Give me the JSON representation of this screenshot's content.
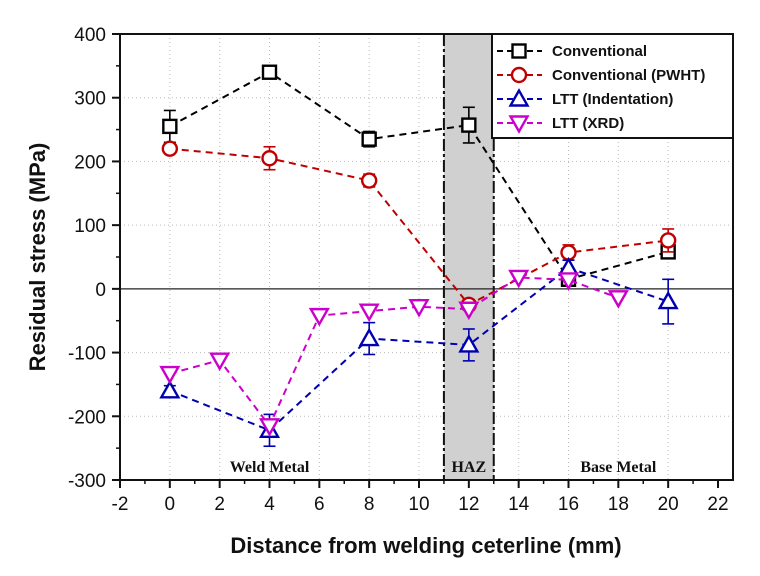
{
  "chart_data": {
    "type": "line",
    "title": "",
    "xlabel": "Distance from welding ceterline (mm)",
    "ylabel": "Residual stress (MPa)",
    "xlim": [
      -2,
      22
    ],
    "ylim": [
      -300,
      400
    ],
    "xticks": [
      -2,
      0,
      2,
      4,
      6,
      8,
      10,
      12,
      14,
      16,
      18,
      20,
      22
    ],
    "yticks": [
      -300,
      -200,
      -100,
      0,
      100,
      200,
      300,
      400
    ],
    "grid": true,
    "legend_position": "top-right",
    "regions": [
      {
        "label": "Weld Metal",
        "x_center": 4,
        "shaded": false
      },
      {
        "label": "HAZ",
        "x_range": [
          11,
          13
        ],
        "shaded": true,
        "color": "#d0d0d0"
      },
      {
        "label": "Base Metal",
        "x_center": 18,
        "shaded": false
      }
    ],
    "series": [
      {
        "name": "Conventional",
        "color": "#000000",
        "marker": "square",
        "x": [
          0,
          4,
          8,
          12,
          16,
          20
        ],
        "y": [
          255,
          340,
          235,
          257,
          15,
          58
        ],
        "err": [
          25,
          0,
          12,
          28,
          8,
          10
        ]
      },
      {
        "name": "Conventional (PWHT)",
        "color": "#c00000",
        "marker": "circle",
        "x": [
          0,
          4,
          8,
          12,
          16,
          20
        ],
        "y": [
          220,
          205,
          170,
          -25,
          57,
          76
        ],
        "err": [
          5,
          18,
          10,
          8,
          12,
          18
        ]
      },
      {
        "name": "LTT (Indentation)",
        "color": "#0000b0",
        "marker": "triangle-up",
        "x": [
          0,
          4,
          8,
          12,
          16,
          20
        ],
        "y": [
          -160,
          -222,
          -78,
          -88,
          33,
          -20
        ],
        "err": [
          8,
          25,
          25,
          25,
          12,
          35
        ]
      },
      {
        "name": "LTT (XRD)",
        "color": "#cc00cc",
        "marker": "triangle-down",
        "x": [
          0,
          2,
          4,
          6,
          8,
          10,
          12,
          14,
          16,
          18
        ],
        "y": [
          -133,
          -112,
          -215,
          -42,
          -35,
          -28,
          -32,
          18,
          14,
          -14
        ],
        "err": [
          0,
          0,
          0,
          0,
          0,
          0,
          0,
          0,
          0,
          0
        ]
      }
    ]
  }
}
